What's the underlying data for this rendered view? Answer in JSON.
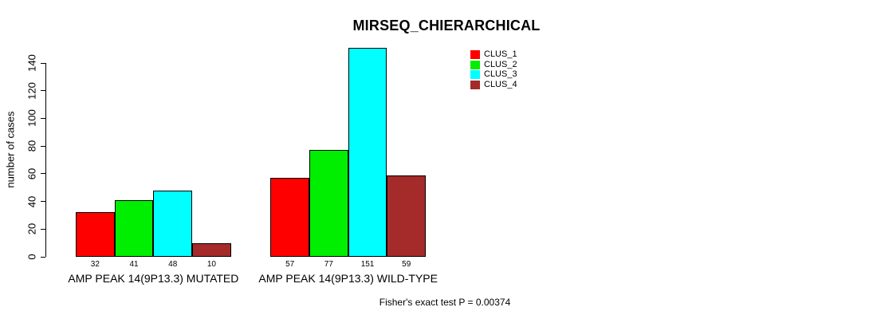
{
  "title": "MIRSEQ_CHIERARCHICAL",
  "chart_data": {
    "type": "bar",
    "title": "MIRSEQ_CHIERARCHICAL",
    "xlabel": "",
    "ylabel": "number of cases",
    "ylim": [
      0,
      140
    ],
    "ytick_step": 20,
    "ytick_labels": [
      "0",
      "20",
      "40",
      "60",
      "80",
      "100",
      "120",
      "140"
    ],
    "grid": false,
    "legend_position": "top-right",
    "categories": [
      "AMP PEAK 14(9P13.3) MUTATED",
      "AMP PEAK 14(9P13.3) WILD-TYPE"
    ],
    "series": [
      {
        "name": "CLUS_1",
        "color": "#ff0000",
        "values": [
          32,
          57
        ]
      },
      {
        "name": "CLUS_2",
        "color": "#00ee00",
        "values": [
          41,
          77
        ]
      },
      {
        "name": "CLUS_3",
        "color": "#00ffff",
        "values": [
          48,
          151
        ]
      },
      {
        "name": "CLUS_4",
        "color": "#a52a2a",
        "values": [
          10,
          59
        ]
      }
    ],
    "bar_value_labels": [
      [
        "32",
        "41",
        "48",
        "10"
      ],
      [
        "57",
        "77",
        "151",
        "59"
      ]
    ],
    "annotation": "Fisher's exact test P = 0.00374"
  }
}
